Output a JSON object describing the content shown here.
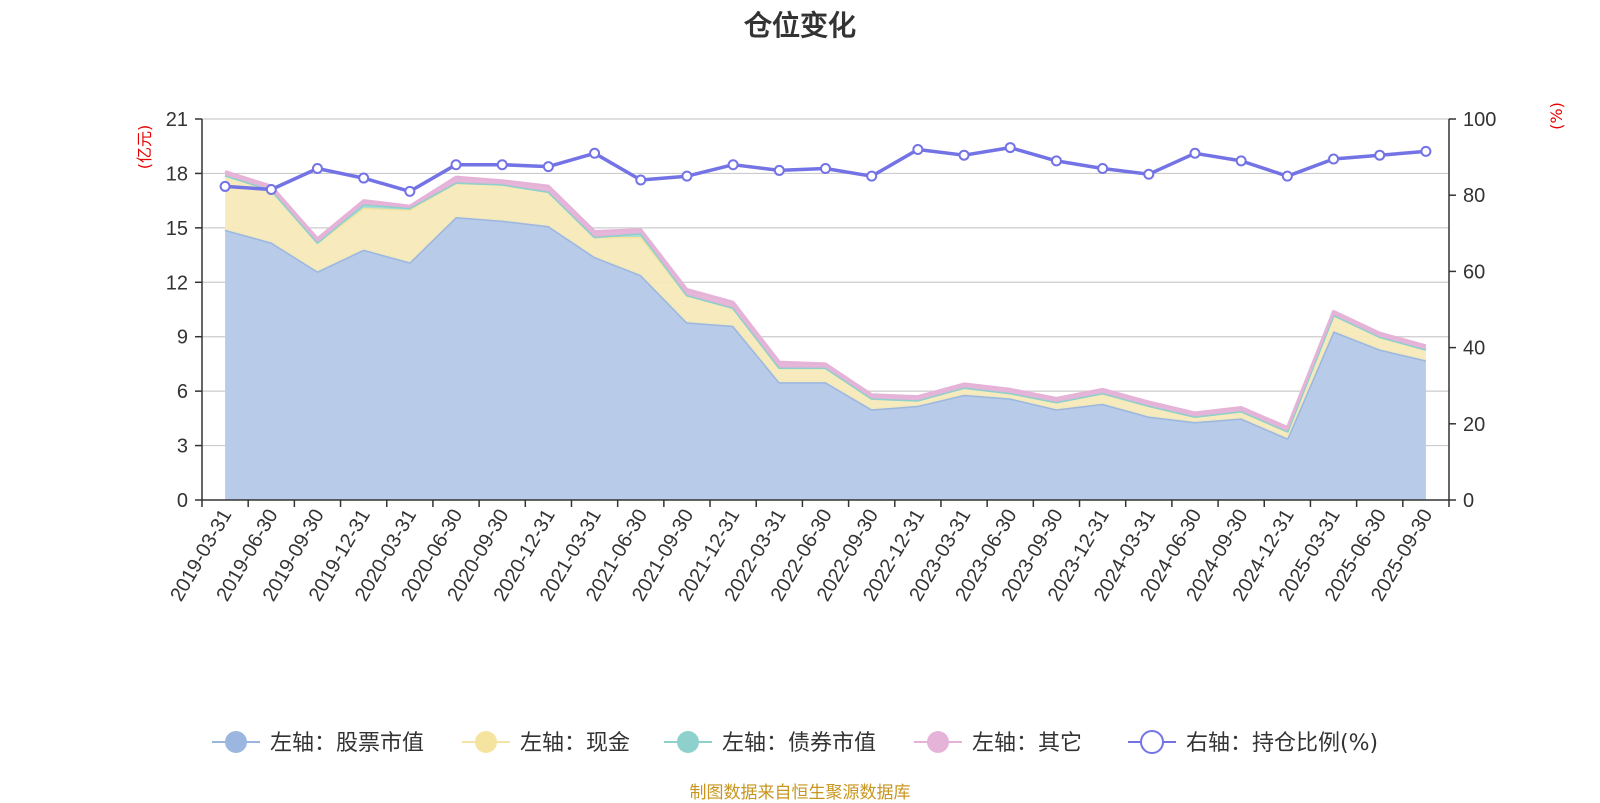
{
  "chart_data": {
    "type": "area",
    "title": "仓位变化",
    "left_axis_unit": "(亿元)",
    "right_axis_unit": "(%)",
    "left_ylim": [
      0,
      21
    ],
    "left_ticks": [
      0,
      3,
      6,
      9,
      12,
      15,
      18,
      21
    ],
    "right_ylim": [
      0,
      100
    ],
    "right_ticks": [
      0,
      20,
      40,
      60,
      80,
      100
    ],
    "grid": true,
    "legend_position": "bottom",
    "categories": [
      "2019-03-31",
      "2019-06-30",
      "2019-09-30",
      "2019-12-31",
      "2020-03-31",
      "2020-06-30",
      "2020-09-30",
      "2020-12-31",
      "2021-03-31",
      "2021-06-30",
      "2021-09-30",
      "2021-12-31",
      "2022-03-31",
      "2022-06-30",
      "2022-09-30",
      "2022-12-31",
      "2023-03-31",
      "2023-06-30",
      "2023-09-30",
      "2023-12-31",
      "2024-03-31",
      "2024-06-30",
      "2024-09-30",
      "2024-12-31",
      "2025-03-31",
      "2025-06-30",
      "2025-09-30"
    ],
    "series": [
      {
        "name": "左轴：股票市值",
        "axis": "left",
        "type": "area",
        "color": "#9bb7e0",
        "fill": "#b8cbe9",
        "values": [
          14.9,
          14.2,
          12.6,
          13.8,
          13.1,
          15.6,
          15.4,
          15.1,
          13.4,
          12.4,
          9.8,
          9.6,
          6.5,
          6.5,
          5.0,
          5.2,
          5.8,
          5.6,
          5.0,
          5.3,
          4.6,
          4.3,
          4.5,
          3.4,
          9.3,
          8.3,
          7.7
        ]
      },
      {
        "name": "左轴：现金",
        "axis": "left",
        "type": "area",
        "color": "#f5e3a0",
        "fill": "#f7eabb",
        "values": [
          3.0,
          2.9,
          1.6,
          2.3,
          2.9,
          1.9,
          2.0,
          1.9,
          1.1,
          2.1,
          1.5,
          1.0,
          0.8,
          0.8,
          0.6,
          0.3,
          0.4,
          0.3,
          0.4,
          0.6,
          0.6,
          0.3,
          0.4,
          0.4,
          0.9,
          0.7,
          0.6
        ]
      },
      {
        "name": "左轴：债券市值",
        "axis": "left",
        "type": "area",
        "color": "#8dd0cc",
        "fill": "#a6dcd8",
        "values": [
          0,
          0,
          0,
          0.2,
          0.1,
          0,
          0,
          0,
          0,
          0.2,
          0,
          0,
          0,
          0,
          0,
          0,
          0,
          0,
          0,
          0,
          0,
          0,
          0,
          0,
          0,
          0,
          0
        ]
      },
      {
        "name": "左轴：其它",
        "axis": "left",
        "type": "area",
        "color": "#e6b3d8",
        "fill": "#e6b3d8",
        "values": [
          0.2,
          0.2,
          0.2,
          0.2,
          0.1,
          0.3,
          0.2,
          0.3,
          0.3,
          0.2,
          0.3,
          0.3,
          0.3,
          0.2,
          0.2,
          0.2,
          0.2,
          0.2,
          0.2,
          0.2,
          0.2,
          0.2,
          0.2,
          0.2,
          0.2,
          0.2,
          0.2
        ]
      },
      {
        "name": "右轴：持仓比例(%)",
        "axis": "right",
        "type": "line",
        "color": "#7373e6",
        "values": [
          82.3,
          81.5,
          87.0,
          84.5,
          81.0,
          88.0,
          88.0,
          87.5,
          91.0,
          84.0,
          85.0,
          88.0,
          86.5,
          87.0,
          85.0,
          92.0,
          90.5,
          92.5,
          89.0,
          87.0,
          85.5,
          91.0,
          89.0,
          85.0,
          89.5,
          90.5,
          91.5
        ]
      }
    ],
    "legend": [
      "左轴：股票市值",
      "左轴：现金",
      "左轴：债券市值",
      "左轴：其它",
      "右轴：持仓比例(%)"
    ]
  },
  "footer": {
    "source": "制图数据来自恒生聚源数据库"
  }
}
